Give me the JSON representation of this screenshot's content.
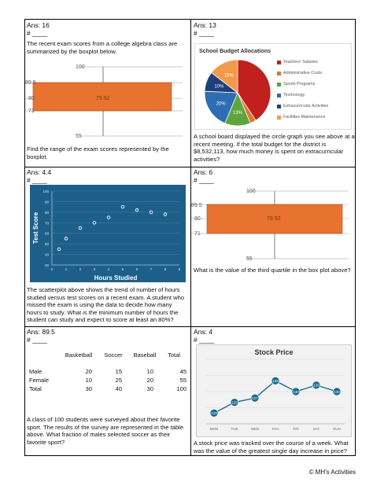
{
  "q1": {
    "answer": "Ans: 16",
    "number": "# ____",
    "intro": "The recent exam scores from a college algebra class are summarized by the boxplot below.",
    "question": "Find the range of the exam scores represented by the boxplot.",
    "box": {
      "min_label": "55",
      "q1_label": "71",
      "median_label": "80",
      "q3_label": "89.5",
      "max_label": "100",
      "mean_label": "79.92",
      "color": "#E8722F"
    }
  },
  "q2": {
    "answer": "Ans: 13",
    "number": "# ____",
    "question": "A school board displayed the circle graph you see above at a recent meeting. If the total budget for the district is $8,532,113, how much money is spent on extracurricular activities?",
    "chart_data": {
      "type": "pie",
      "title": "School Budget Allocations",
      "categories": [
        "Teachers' Salaries",
        "Administrative Costs",
        "Sports Programs",
        "Technology",
        "Extracurricular Activities",
        "Facilities Maintenance"
      ],
      "values": [
        42,
        3,
        13,
        20,
        10,
        15
      ],
      "labels": [
        "",
        "",
        "13%",
        "20%",
        "10%",
        "15%"
      ],
      "colors": [
        "#C0201E",
        "#E8722F",
        "#5DA63E",
        "#2E6DB4",
        "#1E3F7A",
        "#F2994A"
      ]
    }
  },
  "q3": {
    "answer": "Ans: 4.4",
    "number": "# ____",
    "question": "The scatterplot above shows the trend of number of hours studied versus test scores on a recent exam. A student who missed the exam is using the data to decide how many hours to study. What is the minimum number of hours the student can study and expect to score at least an 80%?",
    "chart_data": {
      "type": "scatter",
      "xlabel": "Hours Studied",
      "ylabel": "Test Score",
      "xlim": [
        0,
        9
      ],
      "ylim": [
        30,
        100
      ],
      "xticks": [
        "0",
        "1",
        "2",
        "3",
        "4",
        "5",
        "6",
        "7",
        "8",
        "9"
      ],
      "yticks": [
        "30",
        "40",
        "50",
        "60",
        "70",
        "80",
        "90",
        "100"
      ],
      "x": [
        0.5,
        1,
        2,
        3,
        4,
        5,
        6,
        7,
        8
      ],
      "y": [
        45,
        55,
        65,
        70,
        75,
        85,
        82,
        80,
        78
      ]
    }
  },
  "q4": {
    "answer": "Ans: 6",
    "number": "# ____",
    "question": "What is the value of the third quartile in the box plot above?",
    "box": {
      "min_label": "55",
      "q1_label": "71",
      "median_label": "80",
      "q3_label": "89.5",
      "max_label": "100",
      "mean_label": "79.92",
      "color": "#E8722F"
    }
  },
  "q5": {
    "answer": "Ans: 89.5",
    "number": "# ____",
    "table": {
      "headers": [
        "",
        "Basketball",
        "Soccer",
        "Baseball",
        "Total"
      ],
      "rows": [
        [
          "Male",
          "20",
          "15",
          "10",
          "45"
        ],
        [
          "Female",
          "10",
          "25",
          "20",
          "55"
        ],
        [
          "Total",
          "30",
          "40",
          "30",
          "100"
        ]
      ]
    },
    "question": "A class of 100 students were surveyed about their favorite sport. The results of the survey are represented in the table above. What fraction of males selected soccer as their favorite sport?"
  },
  "q6": {
    "answer": "Ans: 4",
    "number": "# ____",
    "question": "A stock price was tracked over the course of a week. What was the value of the greatest single day increase in price?",
    "chart_data": {
      "type": "line",
      "title": "Stock Price",
      "categories": [
        "MON",
        "TUE",
        "WED",
        "THU",
        "FRI",
        "SAT",
        "SUN"
      ],
      "values": [
        120,
        125,
        127,
        135,
        130,
        133,
        130
      ],
      "data_labels": [
        "120",
        "125",
        "127",
        "135",
        "130",
        "133",
        "130"
      ],
      "ylim": [
        115,
        145
      ],
      "color": "#1E6A8C"
    }
  },
  "footer": "© MH's Activities"
}
